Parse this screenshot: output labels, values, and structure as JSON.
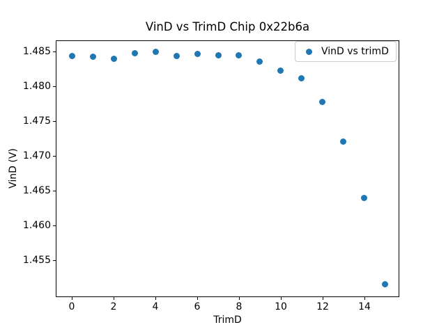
{
  "figure": {
    "background_color": "#ffffff",
    "text_color": "#000000"
  },
  "chart_data": {
    "type": "scatter",
    "title": "VinD vs TrimD Chip 0x22b6a",
    "xlabel": "TrimD",
    "ylabel": "VinD (V)",
    "grid": false,
    "xlim": [
      -0.767,
      15.667
    ],
    "ylim": [
      1.44967,
      1.48657
    ],
    "xticks": {
      "values": [
        0,
        2,
        4,
        6,
        8,
        10,
        12,
        14
      ],
      "labels": [
        "0",
        "2",
        "4",
        "6",
        "8",
        "10",
        "12",
        "14"
      ]
    },
    "yticks": {
      "values": [
        1.455,
        1.46,
        1.465,
        1.47,
        1.475,
        1.48,
        1.485
      ],
      "labels": [
        "1.455",
        "1.460",
        "1.465",
        "1.470",
        "1.475",
        "1.480",
        "1.485"
      ]
    },
    "legend": {
      "position": "upper right",
      "border_color": "#cccccc"
    },
    "series": [
      {
        "name": "VinD vs trimD",
        "marker": "circle",
        "marker_size_px": 9,
        "color": "#1f77b4",
        "x": [
          0,
          1,
          2,
          3,
          4,
          5,
          6,
          7,
          8,
          9,
          10,
          11,
          12,
          13,
          14,
          15
        ],
        "y": [
          1.4843,
          1.4842,
          1.4839,
          1.4847,
          1.4849,
          1.4843,
          1.4846,
          1.4844,
          1.4844,
          1.4835,
          1.4822,
          1.4811,
          1.4777,
          1.472,
          1.4639,
          1.4515
        ]
      }
    ]
  }
}
